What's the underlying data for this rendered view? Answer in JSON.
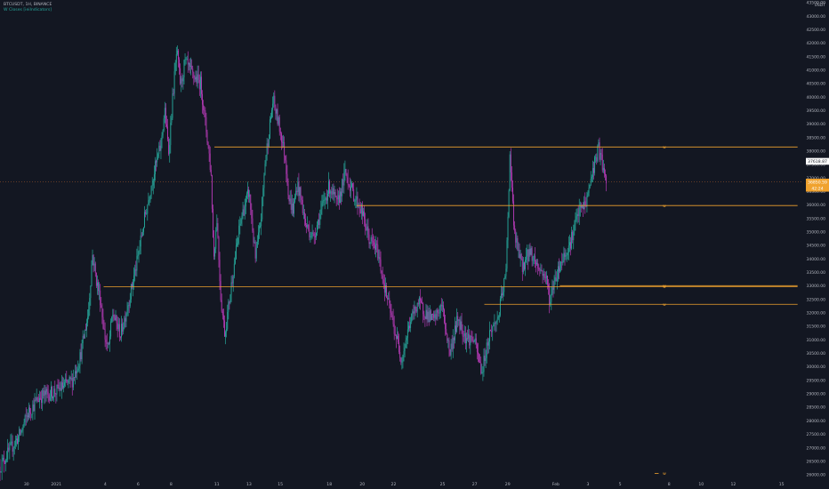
{
  "legend": {
    "symbol_line": "BTCUSDT, 1H, BINANCE",
    "indicator_line": "W Closes [ieiIndicators]"
  },
  "chart_data": {
    "type": "candlestick",
    "currency": "USDT",
    "ylim": [
      26000,
      43500
    ],
    "y_ticks": [
      26000,
      26500,
      27000,
      27500,
      28000,
      28500,
      29000,
      29500,
      30000,
      30500,
      31000,
      31500,
      32000,
      32500,
      33000,
      33500,
      34000,
      34500,
      35000,
      35500,
      36000,
      36500,
      37000,
      37500,
      38000,
      38500,
      39000,
      39500,
      40000,
      40500,
      41000,
      41500,
      42000,
      42500,
      43000,
      43500
    ],
    "x_ticks": [
      {
        "label": "30",
        "pos": 0.033
      },
      {
        "label": "2021",
        "pos": 0.07
      },
      {
        "label": "4",
        "pos": 0.131
      },
      {
        "label": "6",
        "pos": 0.172
      },
      {
        "label": "8",
        "pos": 0.213
      },
      {
        "label": "11",
        "pos": 0.27
      },
      {
        "label": "13",
        "pos": 0.31
      },
      {
        "label": "15",
        "pos": 0.349
      },
      {
        "label": "18",
        "pos": 0.41
      },
      {
        "label": "20",
        "pos": 0.451
      },
      {
        "label": "22",
        "pos": 0.49
      },
      {
        "label": "25",
        "pos": 0.551
      },
      {
        "label": "27",
        "pos": 0.591
      },
      {
        "label": "29",
        "pos": 0.632
      },
      {
        "label": "Feb",
        "pos": 0.692
      },
      {
        "label": "3",
        "pos": 0.732
      },
      {
        "label": "5",
        "pos": 0.772
      },
      {
        "label": "8",
        "pos": 0.833
      },
      {
        "label": "10",
        "pos": 0.873
      },
      {
        "label": "12",
        "pos": 0.913
      },
      {
        "label": "15",
        "pos": 0.973
      }
    ],
    "price_path": [
      [
        0.0,
        26300
      ],
      [
        0.012,
        26900
      ],
      [
        0.025,
        27500
      ],
      [
        0.035,
        28300
      ],
      [
        0.05,
        28900
      ],
      [
        0.07,
        29100
      ],
      [
        0.09,
        29500
      ],
      [
        0.1,
        30400
      ],
      [
        0.11,
        32000
      ],
      [
        0.115,
        34200
      ],
      [
        0.12,
        33200
      ],
      [
        0.125,
        32500
      ],
      [
        0.13,
        31200
      ],
      [
        0.135,
        30600
      ],
      [
        0.14,
        32000
      ],
      [
        0.15,
        31200
      ],
      [
        0.16,
        32400
      ],
      [
        0.17,
        33800
      ],
      [
        0.18,
        35500
      ],
      [
        0.19,
        37000
      ],
      [
        0.2,
        38200
      ],
      [
        0.205,
        39500
      ],
      [
        0.21,
        38000
      ],
      [
        0.215,
        40000
      ],
      [
        0.22,
        41700
      ],
      [
        0.225,
        40400
      ],
      [
        0.23,
        41300
      ],
      [
        0.24,
        40800
      ],
      [
        0.25,
        40500
      ],
      [
        0.255,
        39200
      ],
      [
        0.26,
        38000
      ],
      [
        0.263,
        37000
      ],
      [
        0.266,
        34000
      ],
      [
        0.27,
        35500
      ],
      [
        0.275,
        32500
      ],
      [
        0.28,
        31200
      ],
      [
        0.29,
        33500
      ],
      [
        0.3,
        35500
      ],
      [
        0.31,
        36500
      ],
      [
        0.318,
        34000
      ],
      [
        0.325,
        35500
      ],
      [
        0.33,
        37600
      ],
      [
        0.34,
        39900
      ],
      [
        0.35,
        38600
      ],
      [
        0.355,
        37800
      ],
      [
        0.36,
        36200
      ],
      [
        0.365,
        35800
      ],
      [
        0.37,
        36800
      ],
      [
        0.375,
        36200
      ],
      [
        0.38,
        35300
      ],
      [
        0.39,
        34800
      ],
      [
        0.4,
        35800
      ],
      [
        0.41,
        36700
      ],
      [
        0.42,
        36000
      ],
      [
        0.43,
        37200
      ],
      [
        0.44,
        36400
      ],
      [
        0.45,
        35800
      ],
      [
        0.46,
        34700
      ],
      [
        0.47,
        34300
      ],
      [
        0.48,
        32800
      ],
      [
        0.49,
        31500
      ],
      [
        0.5,
        30300
      ],
      [
        0.51,
        31600
      ],
      [
        0.52,
        32400
      ],
      [
        0.53,
        32000
      ],
      [
        0.54,
        31700
      ],
      [
        0.55,
        32300
      ],
      [
        0.56,
        30500
      ],
      [
        0.57,
        31800
      ],
      [
        0.58,
        31100
      ],
      [
        0.59,
        31000
      ],
      [
        0.6,
        29800
      ],
      [
        0.605,
        30600
      ],
      [
        0.61,
        31300
      ],
      [
        0.62,
        31800
      ],
      [
        0.63,
        33500
      ],
      [
        0.635,
        38000
      ],
      [
        0.64,
        35000
      ],
      [
        0.645,
        34300
      ],
      [
        0.65,
        33700
      ],
      [
        0.66,
        34300
      ],
      [
        0.67,
        33700
      ],
      [
        0.68,
        33300
      ],
      [
        0.685,
        32400
      ],
      [
        0.69,
        33200
      ],
      [
        0.7,
        34000
      ],
      [
        0.71,
        34600
      ],
      [
        0.72,
        35700
      ],
      [
        0.73,
        36100
      ],
      [
        0.735,
        36900
      ],
      [
        0.74,
        37500
      ],
      [
        0.745,
        38100
      ],
      [
        0.75,
        37500
      ],
      [
        0.755,
        36600
      ]
    ],
    "levels": [
      {
        "price": 38150,
        "from": 0.267,
        "to": 0.993,
        "marker": "w"
      },
      {
        "price": 35980,
        "from": 0.444,
        "to": 0.993,
        "marker": "w"
      },
      {
        "price": 33010,
        "from": 0.697,
        "to": 0.993,
        "marker": "w"
      },
      {
        "price": 32970,
        "from": 0.129,
        "to": 0.993,
        "marker": "w"
      },
      {
        "price": 32320,
        "from": 0.603,
        "to": 0.993,
        "marker": "w"
      },
      {
        "price": 26050,
        "from": 0.815,
        "to": 0.82,
        "marker": "w"
      }
    ],
    "price_labels": [
      {
        "label": "37618.87",
        "price": 37618.87,
        "style": "white"
      },
      {
        "label": "36850.59",
        "price": 36850.59,
        "style": "orange"
      },
      {
        "label": "42:24",
        "price": 36620,
        "style": "orange"
      }
    ],
    "current_price": 36850.59,
    "colors": {
      "background": "#131722",
      "up": "#26a69a",
      "down": "#b23ab3",
      "level": "#f0a22e",
      "axis_text": "#b2b5be",
      "current_line": "#b5622b"
    }
  }
}
